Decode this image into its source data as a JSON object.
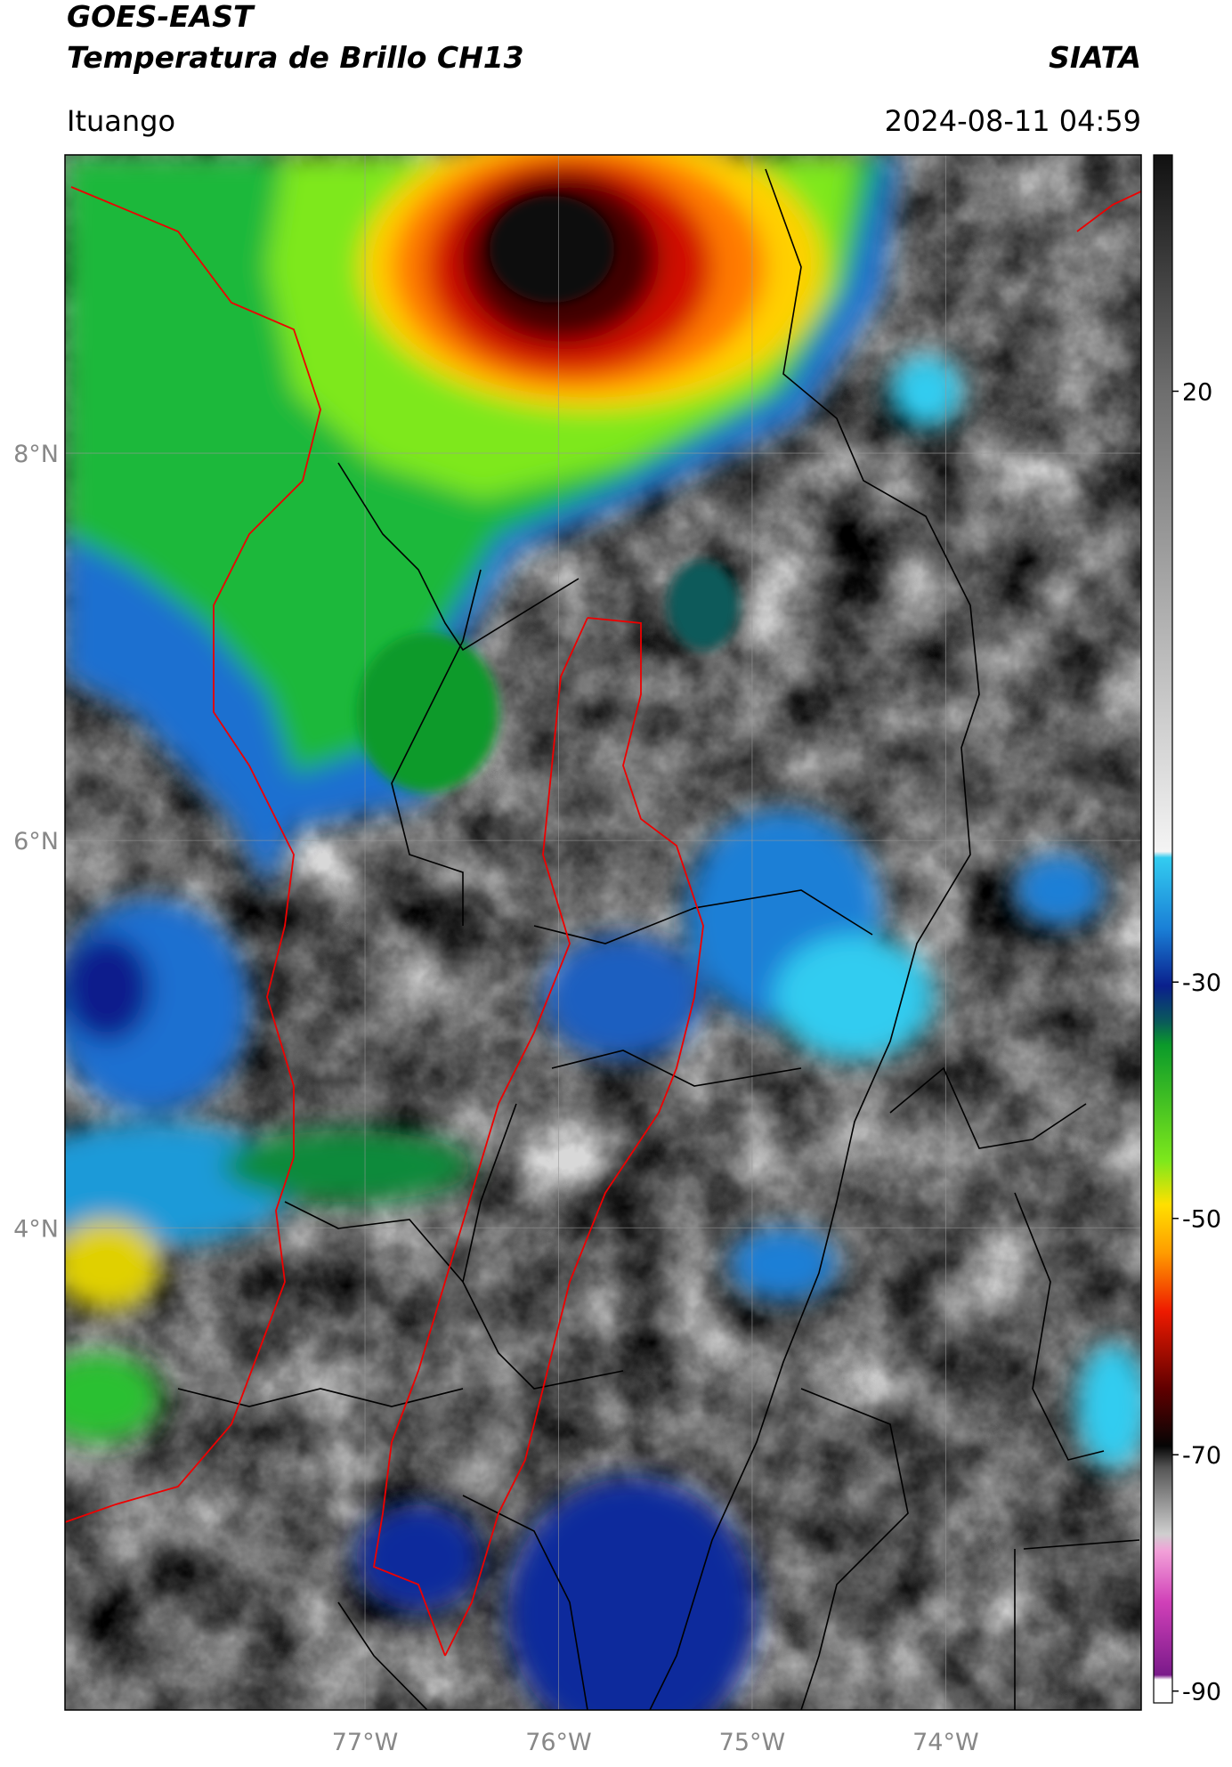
{
  "header": {
    "satellite": "GOES-EAST",
    "product": "Temperatura de Brillo CH13",
    "agency": "SIATA",
    "location": "Ituango",
    "datetime": "2024-08-11 04:59"
  },
  "map": {
    "lon_range": [
      -78.55,
      -72.99
    ],
    "lat_range": [
      1.51,
      9.54
    ],
    "lon_ticks": [
      {
        "value": -77,
        "label": "77°W"
      },
      {
        "value": -76,
        "label": "76°W"
      },
      {
        "value": -75,
        "label": "75°W"
      },
      {
        "value": -74,
        "label": "74°W"
      }
    ],
    "lat_ticks": [
      {
        "value": 8,
        "label": "8°N"
      },
      {
        "value": 6,
        "label": "6°N"
      },
      {
        "value": 4,
        "label": "4°N"
      }
    ]
  },
  "colorbar": {
    "range": [
      -91,
      40
    ],
    "ticks": [
      20,
      -30,
      -50,
      -70,
      -90
    ]
  }
}
